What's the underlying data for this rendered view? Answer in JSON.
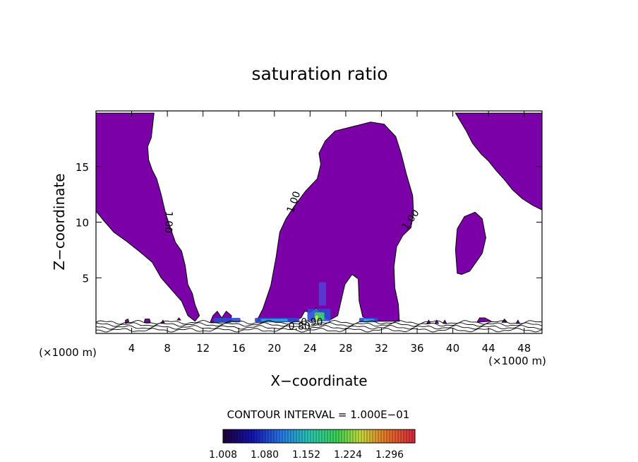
{
  "chart_data": {
    "type": "contour",
    "title": "saturation ratio",
    "xlabel": "X−coordinate",
    "ylabel": "Z−coordinate",
    "x_unit_label_left": "(×1000 m)",
    "x_unit_label_right": "(×1000 m)",
    "xlim": [
      0,
      50
    ],
    "ylim": [
      0,
      20
    ],
    "x_ticks": [
      4,
      8,
      12,
      16,
      20,
      24,
      28,
      32,
      36,
      40,
      44,
      48
    ],
    "y_ticks": [
      5,
      10,
      15
    ],
    "contour_interval_text": "CONTOUR INTERVAL = 1.000E−01",
    "contour_labels": [
      {
        "text": "1.00",
        "x": 8.1,
        "y": 10.0,
        "rot": 92
      },
      {
        "text": "1.00",
        "x": 22.2,
        "y": 11.8,
        "rot": -70
      },
      {
        "text": "1.00",
        "x": 35.3,
        "y": 10.2,
        "rot": -55
      },
      {
        "text": "0.80",
        "x": 22.8,
        "y": 0.6,
        "rot": 0
      },
      {
        "text": "0.90",
        "x": 24.2,
        "y": 1.0,
        "rot": 0
      }
    ],
    "colorbar": {
      "tick_labels": [
        "1.008",
        "1.080",
        "1.152",
        "1.224",
        "1.296"
      ],
      "range": [
        1.0,
        1.35
      ]
    },
    "fill_color": "#7b00a8",
    "supersaturated_regions": [
      {
        "name": "left plume",
        "points": [
          [
            0,
            11
          ],
          [
            0,
            19.8
          ],
          [
            6.5,
            19.8
          ],
          [
            6.2,
            17.6
          ],
          [
            5.8,
            16.8
          ],
          [
            5.9,
            15.6
          ],
          [
            6.3,
            14.7
          ],
          [
            6.8,
            13.9
          ],
          [
            7.3,
            12.5
          ],
          [
            7.8,
            10.8
          ],
          [
            8.3,
            9.6
          ],
          [
            8.9,
            8.2
          ],
          [
            9.6,
            7.4
          ],
          [
            10.0,
            6.1
          ],
          [
            10.3,
            4.4
          ],
          [
            10.8,
            3.6
          ],
          [
            11.1,
            2.6
          ],
          [
            11.6,
            1.6
          ],
          [
            11.1,
            1.1
          ],
          [
            10.3,
            1.6
          ],
          [
            9.6,
            2.9
          ],
          [
            8.6,
            3.8
          ],
          [
            7.3,
            5.0
          ],
          [
            6.3,
            6.4
          ],
          [
            4.8,
            7.4
          ],
          [
            3.4,
            8.3
          ],
          [
            2.0,
            9.1
          ],
          [
            0.9,
            10.1
          ]
        ]
      },
      {
        "name": "central plume",
        "points": [
          [
            18.0,
            1.1
          ],
          [
            18.7,
            2.2
          ],
          [
            19.6,
            4.3
          ],
          [
            20.2,
            6.9
          ],
          [
            20.6,
            9.1
          ],
          [
            21.3,
            10.3
          ],
          [
            22.2,
            11.4
          ],
          [
            23.5,
            12.8
          ],
          [
            24.8,
            13.9
          ],
          [
            25.2,
            15.2
          ],
          [
            25.0,
            16.2
          ],
          [
            25.7,
            17.3
          ],
          [
            26.8,
            18.2
          ],
          [
            28.8,
            18.6
          ],
          [
            30.8,
            19.0
          ],
          [
            32.3,
            18.8
          ],
          [
            33.6,
            17.7
          ],
          [
            34.2,
            16.2
          ],
          [
            34.8,
            14.3
          ],
          [
            35.5,
            12.4
          ],
          [
            35.6,
            10.8
          ],
          [
            35.3,
            9.5
          ],
          [
            34.4,
            8.8
          ],
          [
            33.7,
            7.8
          ],
          [
            33.4,
            6.0
          ],
          [
            33.5,
            4.1
          ],
          [
            33.9,
            2.6
          ],
          [
            34.0,
            1.1
          ],
          [
            31.0,
            1.1
          ],
          [
            29.9,
            1.5
          ],
          [
            29.5,
            2.9
          ],
          [
            29.4,
            4.9
          ],
          [
            28.7,
            5.3
          ],
          [
            27.9,
            4.4
          ],
          [
            27.5,
            3.0
          ],
          [
            27.1,
            1.6
          ],
          [
            26.2,
            1.2
          ],
          [
            25.4,
            1.6
          ],
          [
            24.7,
            2.3
          ],
          [
            24.0,
            1.9
          ],
          [
            23.4,
            2.0
          ],
          [
            23.0,
            1.4
          ],
          [
            22.0,
            1.1
          ]
        ]
      },
      {
        "name": "right plume",
        "points": [
          [
            40.3,
            19.8
          ],
          [
            50,
            19.8
          ],
          [
            50,
            11.1
          ],
          [
            49.0,
            11.5
          ],
          [
            47.8,
            12.1
          ],
          [
            46.7,
            12.9
          ],
          [
            45.8,
            13.8
          ],
          [
            44.9,
            14.6
          ],
          [
            44.0,
            15.5
          ],
          [
            43.2,
            16.1
          ],
          [
            42.2,
            17.1
          ],
          [
            41.5,
            18.2
          ]
        ]
      },
      {
        "name": "right blob",
        "points": [
          [
            40.5,
            5.4
          ],
          [
            40.3,
            7.5
          ],
          [
            40.5,
            9.4
          ],
          [
            41.3,
            10.5
          ],
          [
            42.5,
            10.9
          ],
          [
            43.3,
            10.3
          ],
          [
            43.7,
            8.6
          ],
          [
            43.3,
            7.2
          ],
          [
            42.7,
            6.5
          ],
          [
            41.9,
            5.6
          ],
          [
            41.0,
            5.3
          ]
        ]
      }
    ],
    "low_level_patches": [
      {
        "points": [
          [
            12.8,
            1.0
          ],
          [
            13.1,
            1.6
          ],
          [
            13.6,
            2.0
          ],
          [
            14.1,
            1.4
          ],
          [
            14.6,
            2.0
          ],
          [
            15.2,
            1.6
          ],
          [
            15.1,
            1.0
          ]
        ]
      },
      {
        "points": [
          [
            3.3,
            0.9
          ],
          [
            3.3,
            1.2
          ],
          [
            3.6,
            1.3
          ],
          [
            3.7,
            1.0
          ]
        ]
      },
      {
        "points": [
          [
            5.4,
            1.0
          ],
          [
            5.5,
            1.3
          ],
          [
            6.0,
            1.3
          ],
          [
            6.1,
            1.0
          ]
        ]
      },
      {
        "points": [
          [
            9.1,
            1.2
          ],
          [
            9.3,
            1.4
          ],
          [
            9.5,
            1.2
          ]
        ]
      },
      {
        "points": [
          [
            7.3,
            0.9
          ],
          [
            7.5,
            1.2
          ],
          [
            7.7,
            0.9
          ]
        ]
      },
      {
        "points": [
          [
            42.7,
            1.0
          ],
          [
            43.0,
            1.4
          ],
          [
            43.6,
            1.4
          ],
          [
            44.3,
            1.1
          ]
        ]
      },
      {
        "points": [
          [
            45.5,
            1.0
          ],
          [
            45.8,
            1.3
          ],
          [
            46.1,
            1.0
          ]
        ]
      },
      {
        "points": [
          [
            47.1,
            0.9
          ],
          [
            47.3,
            1.2
          ],
          [
            47.5,
            0.9
          ]
        ]
      },
      {
        "points": [
          [
            37.1,
            0.9
          ],
          [
            37.3,
            1.2
          ],
          [
            37.5,
            0.9
          ]
        ]
      },
      {
        "points": [
          [
            38.0,
            0.9
          ],
          [
            38.2,
            1.2
          ],
          [
            38.4,
            0.9
          ]
        ]
      },
      {
        "points": [
          [
            38.9,
            0.9
          ],
          [
            39.1,
            1.2
          ],
          [
            39.3,
            0.9
          ]
        ]
      }
    ],
    "highlight_bands": [
      {
        "x0": 13.2,
        "x1": 16.2,
        "y0": 1.0,
        "y1": 1.4,
        "color": "#2a4bd4"
      },
      {
        "x0": 17.8,
        "x1": 22.8,
        "y0": 1.0,
        "y1": 1.4,
        "color": "#2a4bd4"
      },
      {
        "x0": 18.5,
        "x1": 21.5,
        "y0": 1.1,
        "y1": 1.3,
        "color": "#2fb0d8"
      },
      {
        "x0": 29.5,
        "x1": 31.6,
        "y0": 1.0,
        "y1": 1.4,
        "color": "#2a4bd4"
      },
      {
        "x0": 30.0,
        "x1": 31.2,
        "y0": 1.1,
        "y1": 1.3,
        "color": "#2fb0d8"
      },
      {
        "x0": 25.0,
        "x1": 25.8,
        "y0": 2.5,
        "y1": 4.6,
        "color": "#5a3ad0"
      },
      {
        "x0": 23.7,
        "x1": 26.3,
        "y0": 1.1,
        "y1": 2.2,
        "color": "#2a4bd4"
      },
      {
        "x0": 24.5,
        "x1": 25.6,
        "y0": 1.2,
        "y1": 1.9,
        "color": "#3fd06a"
      },
      {
        "x0": 24.6,
        "x1": 24.9,
        "y0": 1.0,
        "y1": 1.6,
        "color": "#e6e640"
      }
    ],
    "surface_contours": [
      {
        "level": 0.95,
        "y_offset": 1.0
      },
      {
        "level": 0.9,
        "y_offset": 0.8
      },
      {
        "level": 0.85,
        "y_offset": 0.55
      },
      {
        "level": 0.8,
        "y_offset": 0.3
      }
    ]
  }
}
